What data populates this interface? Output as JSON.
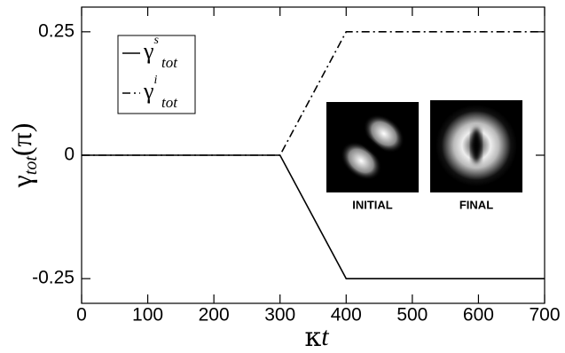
{
  "chart_data": {
    "type": "line",
    "x_label": {
      "symbol": "κ",
      "var": "t"
    },
    "y_label": {
      "symbol": "γ",
      "sub": "tot",
      "unit": "(π)"
    },
    "x": [
      0,
      300,
      400,
      700
    ],
    "series": [
      {
        "name": {
          "symbol": "γ",
          "sup": "s",
          "sub": "tot"
        },
        "color": "#000000",
        "dash": "solid",
        "values": [
          0,
          0,
          -0.25,
          -0.25
        ]
      },
      {
        "name": {
          "symbol": "γ",
          "sup": "i",
          "sub": "tot"
        },
        "color": "#000000",
        "dash": "dashdot",
        "values": [
          0,
          0,
          0.25,
          0.25
        ]
      }
    ],
    "xlim": [
      0,
      700
    ],
    "xticks": [
      0,
      100,
      200,
      300,
      400,
      500,
      600,
      700
    ],
    "ylim": [
      -0.3,
      0.3
    ],
    "yticks": [
      -0.25,
      0,
      0.25
    ],
    "legend": "upper left",
    "insets": [
      "INITIAL",
      "FINAL"
    ]
  }
}
